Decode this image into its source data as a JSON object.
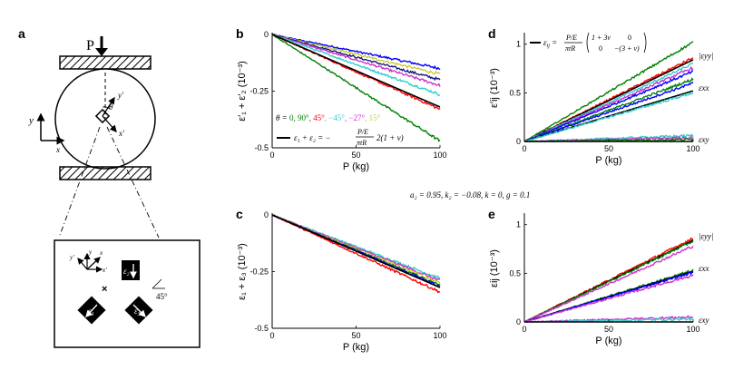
{
  "figure": {
    "common_params": "a₂ = 0.95, k₂ = −0.08, k = 0, g = 0.1",
    "load_label": "P"
  },
  "panel_a": {
    "label": "a",
    "axis_y": "y",
    "axis_x": "x",
    "primed_y": "y′",
    "primed_x": "x′",
    "theta": "θ",
    "zoom_primed_y": "y′",
    "zoom_y": "y",
    "zoom_x": "x",
    "zoom_primed_x": "x′",
    "gauge_2": "ε₂",
    "gauge_1": "ε₁",
    "gauge_3": "ε₃",
    "angle": "45°"
  },
  "colors": {
    "black": "#000000",
    "green": "#008000",
    "red": "#ff0000",
    "cyan": "#33cccc",
    "magenta": "#cc33cc",
    "yellow": "#cccc33",
    "blue": "#0000ff",
    "darkblue": "#1a1a80"
  },
  "legend_b": {
    "theta_prefix": "θ = ",
    "entries": [
      {
        "text": "0, 90°",
        "color": "#008000"
      },
      {
        "text": ", 45°",
        "color": "#ff0000"
      },
      {
        "text": ", −45°",
        "color": "#33cccc"
      },
      {
        "text": ", −27°",
        "color": "#cc33cc"
      },
      {
        "text": ", 15°",
        "color": "#cccc33"
      }
    ],
    "formula_lhs": "ε₁ + ε₂ = −",
    "formula_num": "P/E",
    "formula_den": "πtR",
    "formula_rhs": "2(1 + ν)"
  },
  "legend_d": {
    "lhs": "ε",
    "lhs_sub": "ij",
    "eq": " = ",
    "frac_num": "P/E",
    "frac_den": "πtR",
    "m11": "1 + 3ν",
    "m12": "0",
    "m21": "0",
    "m22": "−(3 + ν)"
  },
  "chart_data": [
    {
      "id": "b",
      "label": "b",
      "type": "line",
      "title": "",
      "xlabel": "P (kg)",
      "ylabel": "ε′₁ + ε′₂ (10⁻³)",
      "xlim": [
        0,
        100
      ],
      "ylim": [
        -0.5,
        0
      ],
      "xticks": [
        0,
        50,
        100
      ],
      "yticks": [
        0,
        -0.25,
        -0.5
      ],
      "xtick_labels": [
        "0",
        "50",
        "100"
      ],
      "ytick_labels": [
        "0",
        "-0.25",
        "-0.5"
      ],
      "series": [
        {
          "name": "blue",
          "color": "#0000ff",
          "x": [
            0,
            100
          ],
          "y": [
            0,
            -0.15
          ],
          "noisy": true
        },
        {
          "name": "15°",
          "color": "#cccc33",
          "x": [
            0,
            100
          ],
          "y": [
            0,
            -0.175
          ],
          "noisy": true
        },
        {
          "name": "darkblue",
          "color": "#1a1a80",
          "x": [
            0,
            100
          ],
          "y": [
            0,
            -0.2
          ],
          "noisy": true
        },
        {
          "name": "−27°",
          "color": "#cc33cc",
          "x": [
            0,
            100
          ],
          "y": [
            0,
            -0.225
          ],
          "noisy": true
        },
        {
          "name": "−45°",
          "color": "#33cccc",
          "x": [
            0,
            100
          ],
          "y": [
            0,
            -0.265
          ],
          "noisy": true
        },
        {
          "name": "45°",
          "color": "#ff0000",
          "x": [
            0,
            100
          ],
          "y": [
            0,
            -0.33
          ],
          "noisy": true
        },
        {
          "name": "0, 90°",
          "color": "#008000",
          "x": [
            0,
            100
          ],
          "y": [
            0,
            -0.47
          ],
          "noisy": true
        },
        {
          "name": "theory",
          "color": "#000000",
          "x": [
            0,
            100
          ],
          "y": [
            0,
            -0.32
          ],
          "noisy": false
        }
      ]
    },
    {
      "id": "c",
      "label": "c",
      "type": "line",
      "title": "",
      "xlabel": "P (kg)",
      "ylabel": "ε₁ + ε₃ (10⁻³)",
      "xlim": [
        0,
        100
      ],
      "ylim": [
        -0.5,
        0
      ],
      "xticks": [
        0,
        50,
        100
      ],
      "yticks": [
        0,
        -0.25,
        -0.5
      ],
      "xtick_labels": [
        "0",
        "50",
        "100"
      ],
      "ytick_labels": [
        "0",
        "-0.25",
        "-0.5"
      ],
      "series": [
        {
          "name": "cyan",
          "color": "#33cccc",
          "x": [
            0,
            100
          ],
          "y": [
            0,
            -0.28
          ],
          "noisy": true
        },
        {
          "name": "magenta",
          "color": "#cc33cc",
          "x": [
            0,
            100
          ],
          "y": [
            0,
            -0.29
          ],
          "noisy": true
        },
        {
          "name": "yellow",
          "color": "#cccc33",
          "x": [
            0,
            100
          ],
          "y": [
            0,
            -0.3
          ],
          "noisy": true
        },
        {
          "name": "green",
          "color": "#008000",
          "x": [
            0,
            100
          ],
          "y": [
            0,
            -0.31
          ],
          "noisy": true
        },
        {
          "name": "blue",
          "color": "#0000ff",
          "x": [
            0,
            100
          ],
          "y": [
            0,
            -0.315
          ],
          "noisy": true
        },
        {
          "name": "red",
          "color": "#ff0000",
          "x": [
            0,
            100
          ],
          "y": [
            0,
            -0.34
          ],
          "noisy": true
        },
        {
          "name": "theory",
          "color": "#000000",
          "x": [
            0,
            100
          ],
          "y": [
            0,
            -0.32
          ],
          "noisy": false
        }
      ]
    },
    {
      "id": "d",
      "label": "d",
      "type": "line",
      "title": "",
      "xlabel": "P (kg)",
      "ylabel": "ε′ij (10⁻³)",
      "xlim": [
        0,
        100
      ],
      "ylim": [
        0,
        1.1
      ],
      "xticks": [
        0,
        50,
        100
      ],
      "yticks": [
        0,
        0.5,
        1
      ],
      "xtick_labels": [
        "0",
        "50",
        "100"
      ],
      "ytick_labels": [
        "0",
        "0.5",
        "1"
      ],
      "right_labels": [
        {
          "text": "|εyy|",
          "y": 0.88
        },
        {
          "text": "εxx",
          "y": 0.55
        },
        {
          "text": "εxy",
          "y": 0.02
        }
      ],
      "series": [
        {
          "name": "green-yy",
          "color": "#008000",
          "x": [
            0,
            100
          ],
          "y": [
            0,
            1.02
          ],
          "noisy": true
        },
        {
          "name": "red-yy",
          "color": "#ff0000",
          "x": [
            0,
            100
          ],
          "y": [
            0,
            0.86
          ],
          "noisy": true
        },
        {
          "name": "theory-yy",
          "color": "#000000",
          "x": [
            0,
            100
          ],
          "y": [
            0,
            0.84
          ],
          "noisy": false
        },
        {
          "name": "cyan-yy",
          "color": "#33cccc",
          "x": [
            0,
            100
          ],
          "y": [
            0,
            0.8
          ],
          "noisy": true
        },
        {
          "name": "magenta-yy",
          "color": "#cc33cc",
          "x": [
            0,
            100
          ],
          "y": [
            0,
            0.76
          ],
          "noisy": true
        },
        {
          "name": "blue-yy",
          "color": "#0000ff",
          "x": [
            0,
            100
          ],
          "y": [
            0,
            0.72
          ],
          "noisy": true
        },
        {
          "name": "green-xx",
          "color": "#008000",
          "x": [
            0,
            100
          ],
          "y": [
            0,
            0.64
          ],
          "noisy": true
        },
        {
          "name": "blue-xx",
          "color": "#0000ff",
          "x": [
            0,
            100
          ],
          "y": [
            0,
            0.6
          ],
          "noisy": true
        },
        {
          "name": "theory-xx",
          "color": "#000000",
          "x": [
            0,
            100
          ],
          "y": [
            0,
            0.52
          ],
          "noisy": false
        },
        {
          "name": "cyan-xx",
          "color": "#33cccc",
          "x": [
            0,
            100
          ],
          "y": [
            0,
            0.5
          ],
          "noisy": true
        },
        {
          "name": "cyan-xy",
          "color": "#33cccc",
          "x": [
            0,
            100
          ],
          "y": [
            0,
            0.06
          ],
          "noisy": true
        },
        {
          "name": "magenta-xy",
          "color": "#cc33cc",
          "x": [
            0,
            100
          ],
          "y": [
            0,
            0.04
          ],
          "noisy": true
        },
        {
          "name": "green-xy",
          "color": "#008000",
          "x": [
            0,
            100
          ],
          "y": [
            0,
            0.02
          ],
          "noisy": true
        },
        {
          "name": "theory-xy",
          "color": "#000000",
          "x": [
            0,
            100
          ],
          "y": [
            0,
            0.0
          ],
          "noisy": false
        }
      ]
    },
    {
      "id": "e",
      "label": "e",
      "type": "line",
      "title": "",
      "xlabel": "P (kg)",
      "ylabel": "εij (10⁻³)",
      "xlim": [
        0,
        100
      ],
      "ylim": [
        0,
        1.1
      ],
      "xticks": [
        0,
        50,
        100
      ],
      "yticks": [
        0,
        0.5,
        1
      ],
      "xtick_labels": [
        "0",
        "50",
        "100"
      ],
      "ytick_labels": [
        "0",
        "0.5",
        "1"
      ],
      "right_labels": [
        {
          "text": "|εyy|",
          "y": 0.88
        },
        {
          "text": "εxx",
          "y": 0.55
        },
        {
          "text": "εxy",
          "y": 0.02
        }
      ],
      "series": [
        {
          "name": "red-yy",
          "color": "#ff0000",
          "x": [
            0,
            100
          ],
          "y": [
            0,
            0.86
          ],
          "noisy": true
        },
        {
          "name": "theory-yy",
          "color": "#000000",
          "x": [
            0,
            100
          ],
          "y": [
            0,
            0.84
          ],
          "noisy": false
        },
        {
          "name": "green-yy",
          "color": "#008000",
          "x": [
            0,
            100
          ],
          "y": [
            0,
            0.83
          ],
          "noisy": true
        },
        {
          "name": "magenta-yy",
          "color": "#cc33cc",
          "x": [
            0,
            100
          ],
          "y": [
            0,
            0.78
          ],
          "noisy": true
        },
        {
          "name": "green-xx",
          "color": "#008000",
          "x": [
            0,
            100
          ],
          "y": [
            0,
            0.53
          ],
          "noisy": true
        },
        {
          "name": "theory-xx",
          "color": "#000000",
          "x": [
            0,
            100
          ],
          "y": [
            0,
            0.52
          ],
          "noisy": false
        },
        {
          "name": "blue-xx",
          "color": "#0000ff",
          "x": [
            0,
            100
          ],
          "y": [
            0,
            0.51
          ],
          "noisy": true
        },
        {
          "name": "magenta-xx",
          "color": "#cc33cc",
          "x": [
            0,
            100
          ],
          "y": [
            0,
            0.48
          ],
          "noisy": true
        },
        {
          "name": "magenta-xy",
          "color": "#cc33cc",
          "x": [
            0,
            100
          ],
          "y": [
            0,
            0.05
          ],
          "noisy": true
        },
        {
          "name": "cyan-xy",
          "color": "#33cccc",
          "x": [
            0,
            100
          ],
          "y": [
            0,
            0.03
          ],
          "noisy": true
        },
        {
          "name": "theory-xy",
          "color": "#000000",
          "x": [
            0,
            100
          ],
          "y": [
            0,
            0.0
          ],
          "noisy": false
        }
      ]
    }
  ]
}
